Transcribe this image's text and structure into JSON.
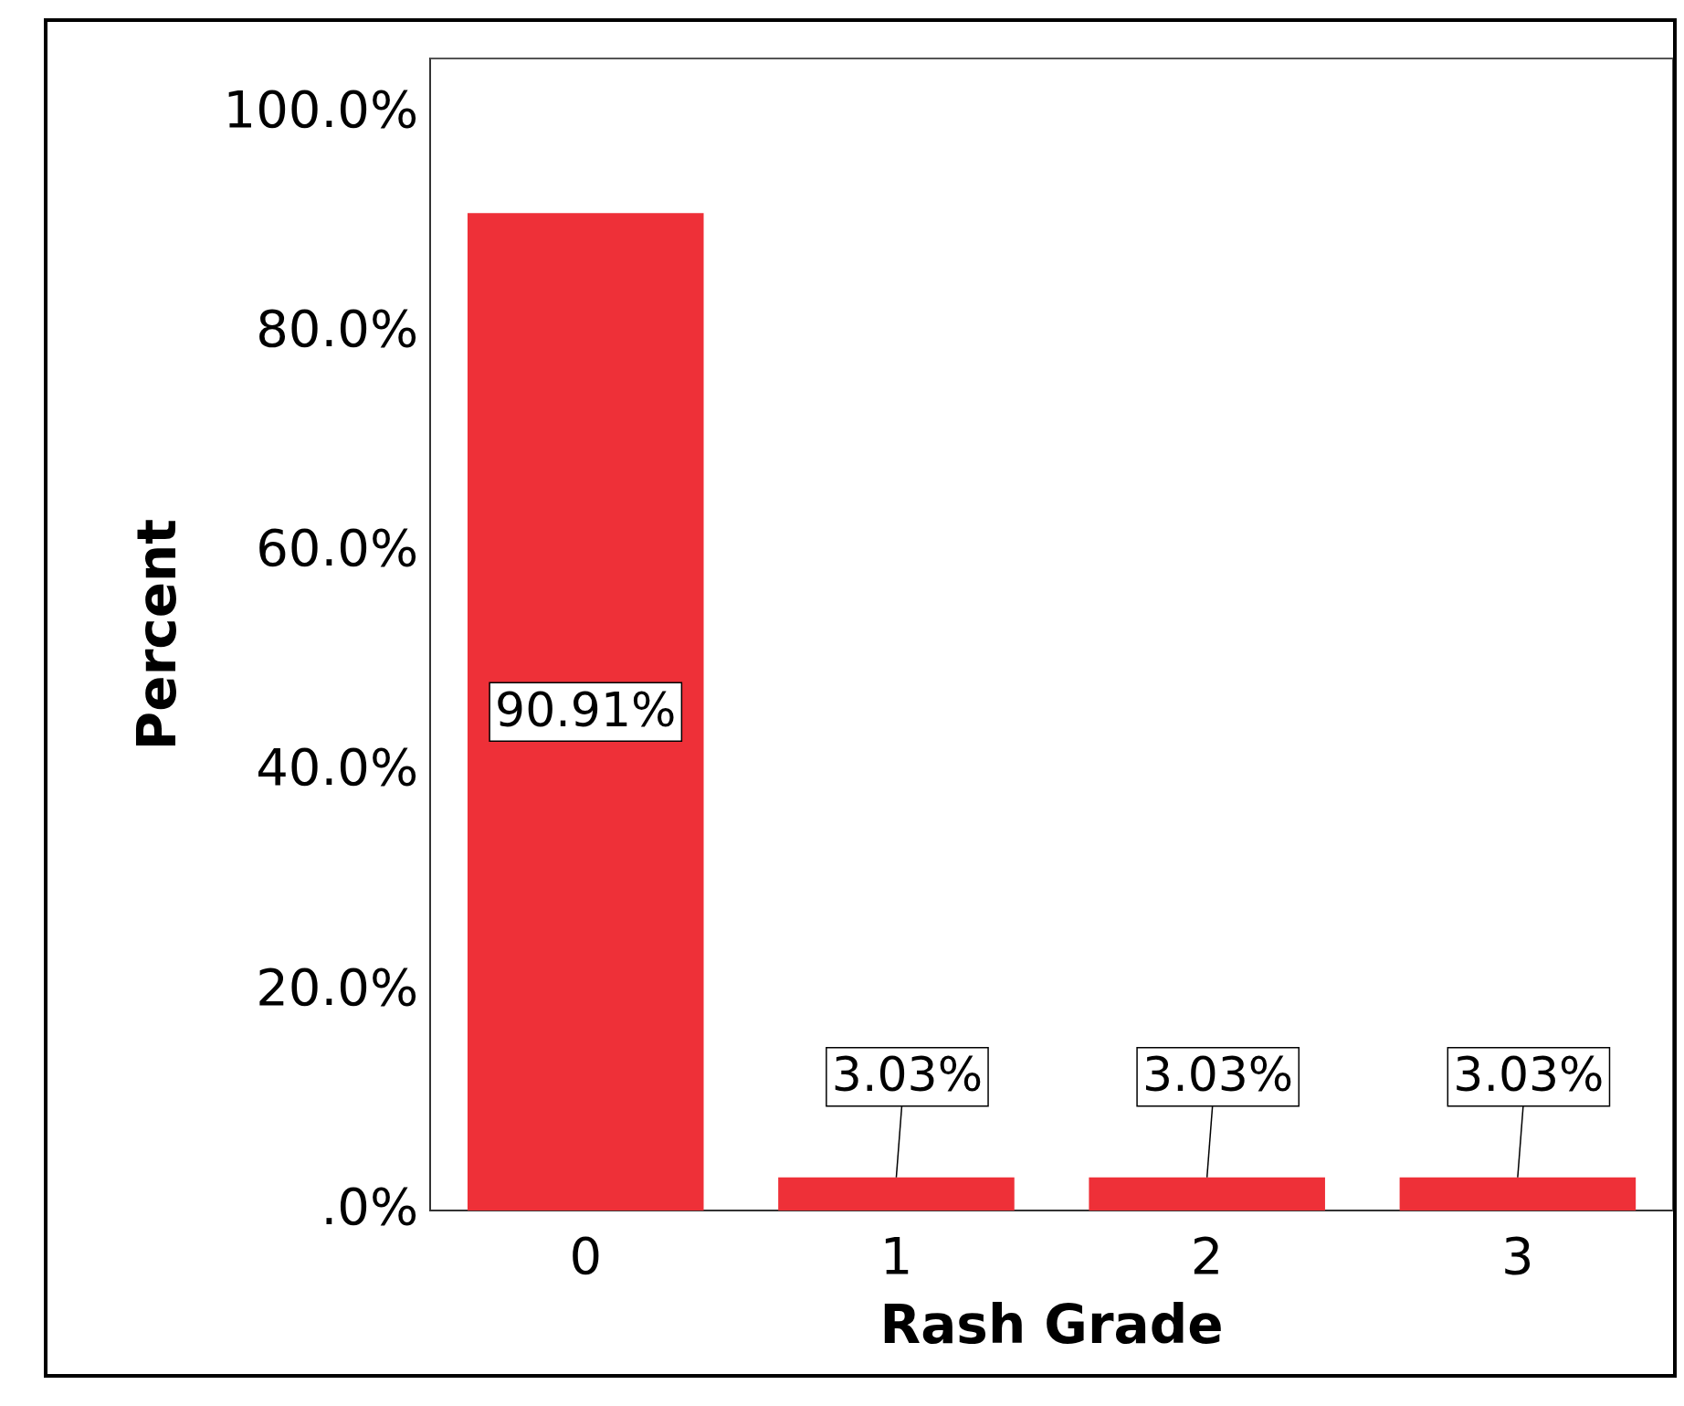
{
  "chart_data": {
    "type": "bar",
    "xlabel": "Rash Grade",
    "ylabel": "Percent",
    "categories": [
      "0",
      "1",
      "2",
      "3"
    ],
    "values": [
      90.91,
      3.03,
      3.03,
      3.03
    ],
    "value_labels": [
      "90.91%",
      "3.03%",
      "3.03%",
      "3.03%"
    ],
    "color": "#ee3038",
    "ylim": [
      0,
      105
    ],
    "yticks": [
      {
        "value": 0,
        "label": ".0%"
      },
      {
        "value": 20,
        "label": "20.0%"
      },
      {
        "value": 40,
        "label": "40.0%"
      },
      {
        "value": 60,
        "label": "60.0%"
      },
      {
        "value": 80,
        "label": "80.0%"
      },
      {
        "value": 100,
        "label": "100.0%"
      }
    ],
    "grid": false,
    "legend": false
  }
}
